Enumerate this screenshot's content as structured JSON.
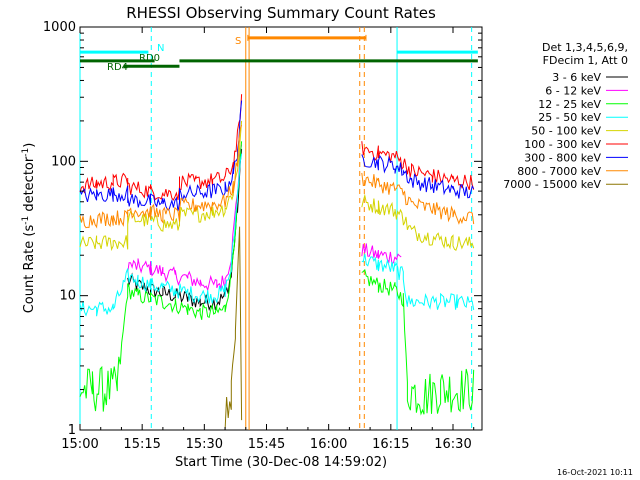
{
  "chart_data": {
    "type": "line",
    "title": "RHESSI Observing Summary Count Rates",
    "xlabel": "Start Time (30-Dec-08 14:59:02)",
    "ylabel_main": "Count Rate (s",
    "ylabel_sup1": "-1",
    "ylabel_mid": " detector",
    "ylabel_sup2": "-1",
    "ylabel_end": ")",
    "y_scale": "log",
    "ylim": [
      1,
      1000
    ],
    "xlim_minutes": [
      0,
      97
    ],
    "x_ticks": [
      {
        "minute": 0,
        "label": "15:00"
      },
      {
        "minute": 15,
        "label": "15:15"
      },
      {
        "minute": 30,
        "label": "15:30"
      },
      {
        "minute": 45,
        "label": "15:45"
      },
      {
        "minute": 60,
        "label": "16:00"
      },
      {
        "minute": 75,
        "label": "16:15"
      },
      {
        "minute": 90,
        "label": "16:30"
      }
    ],
    "y_ticks": [
      {
        "value": 1,
        "label": "1"
      },
      {
        "value": 10,
        "label": "10"
      },
      {
        "value": 100,
        "label": "100"
      },
      {
        "value": 1000,
        "label": "1000"
      }
    ],
    "legend_header": [
      "Det 1,3,4,5,6,9,",
      "FDecim 1, Att 0"
    ],
    "legend_placement": "right",
    "series": [
      {
        "name": "3 - 6 keV",
        "color": "#000000",
        "data": [
          [
            11.5,
            13
          ],
          [
            14,
            12
          ],
          [
            17,
            11
          ],
          [
            20,
            10.5
          ],
          [
            23,
            10
          ],
          [
            26,
            9.5
          ],
          [
            29,
            9
          ],
          [
            33,
            9
          ],
          [
            35,
            10
          ],
          [
            36.5,
            14
          ],
          [
            38,
            45
          ],
          [
            39,
            120
          ]
        ]
      },
      {
        "name": "6 - 12 keV",
        "color": "#ff00ff",
        "data": [
          [
            11.5,
            17
          ],
          [
            14,
            16.5
          ],
          [
            17,
            16
          ],
          [
            20,
            15
          ],
          [
            23,
            14
          ],
          [
            26,
            13.5
          ],
          [
            29,
            12.5
          ],
          [
            33,
            12
          ],
          [
            35,
            13
          ],
          [
            36.5,
            20
          ],
          [
            38,
            60
          ],
          [
            39,
            140
          ],
          [
            68,
            22
          ],
          [
            72,
            20
          ],
          [
            76,
            19.5
          ],
          [
            77.5,
            19
          ],
          [
            77.5,
            null
          ],
          [
            79,
            null
          ]
        ]
      },
      {
        "name": "12 - 25 keV",
        "color": "#00ff00",
        "data": [
          [
            0,
            2
          ],
          [
            3,
            2
          ],
          [
            6,
            2
          ],
          [
            9,
            2
          ],
          [
            11.5,
            11
          ],
          [
            14,
            10
          ],
          [
            17,
            9.5
          ],
          [
            20,
            9
          ],
          [
            23,
            8.5
          ],
          [
            26,
            8
          ],
          [
            29,
            7.5
          ],
          [
            33,
            7.5
          ],
          [
            35,
            8
          ],
          [
            36.5,
            15
          ],
          [
            38,
            50
          ],
          [
            39,
            130
          ],
          [
            68,
            14
          ],
          [
            72,
            12
          ],
          [
            76,
            11
          ],
          [
            78,
            9.5
          ],
          [
            79,
            2
          ],
          [
            83,
            1.8
          ],
          [
            87,
            2
          ],
          [
            91,
            2
          ],
          [
            95,
            2
          ]
        ]
      },
      {
        "name": "25 - 50 keV",
        "color": "#00ffff",
        "data": [
          [
            0,
            8
          ],
          [
            4,
            8
          ],
          [
            8,
            8
          ],
          [
            11.5,
            14
          ],
          [
            14,
            13
          ],
          [
            17,
            12
          ],
          [
            20,
            11.5
          ],
          [
            23,
            11
          ],
          [
            26,
            10.5
          ],
          [
            29,
            10
          ],
          [
            33,
            10
          ],
          [
            35,
            11
          ],
          [
            36.5,
            16
          ],
          [
            38,
            55
          ],
          [
            39,
            130
          ],
          [
            68,
            19
          ],
          [
            72,
            17
          ],
          [
            76,
            16
          ],
          [
            78,
            14
          ],
          [
            79,
            9
          ],
          [
            83,
            9
          ],
          [
            87,
            9
          ],
          [
            91,
            9
          ],
          [
            95,
            8.5
          ]
        ]
      },
      {
        "name": "50 - 100 keV",
        "color": "#d4d400",
        "data": [
          [
            0,
            24
          ],
          [
            4,
            24.5
          ],
          [
            8,
            25
          ],
          [
            11.5,
            25
          ],
          [
            11.5,
            38
          ],
          [
            17,
            36
          ],
          [
            20,
            34
          ],
          [
            24,
            33
          ],
          [
            24,
            40
          ],
          [
            28,
            40
          ],
          [
            32,
            42
          ],
          [
            35,
            45
          ],
          [
            37,
            60
          ],
          [
            38,
            90
          ],
          [
            39,
            180
          ],
          [
            68,
            50
          ],
          [
            72,
            46
          ],
          [
            76,
            43
          ],
          [
            78,
            38
          ],
          [
            80,
            30
          ],
          [
            85,
            27
          ],
          [
            90,
            25
          ],
          [
            95,
            24
          ]
        ]
      },
      {
        "name": "100 - 300 keV",
        "color": "#ff0000",
        "data": [
          [
            0,
            65
          ],
          [
            4,
            68
          ],
          [
            8,
            70
          ],
          [
            11.5,
            72
          ],
          [
            11.5,
            65
          ],
          [
            17,
            60
          ],
          [
            20,
            58
          ],
          [
            24,
            58
          ],
          [
            24,
            70
          ],
          [
            28,
            70
          ],
          [
            32,
            72
          ],
          [
            35,
            75
          ],
          [
            37,
            95
          ],
          [
            38,
            150
          ],
          [
            39,
            290
          ],
          [
            68,
            125
          ],
          [
            72,
            115
          ],
          [
            76,
            108
          ],
          [
            78,
            98
          ],
          [
            80,
            85
          ],
          [
            85,
            78
          ],
          [
            90,
            72
          ],
          [
            95,
            70
          ]
        ]
      },
      {
        "name": "300 - 800 keV",
        "color": "#0000ff",
        "data": [
          [
            0,
            55
          ],
          [
            4,
            56
          ],
          [
            8,
            57
          ],
          [
            11.5,
            58
          ],
          [
            11.5,
            52
          ],
          [
            17,
            50
          ],
          [
            20,
            48
          ],
          [
            24,
            48
          ],
          [
            24,
            57
          ],
          [
            28,
            58
          ],
          [
            32,
            60
          ],
          [
            35,
            62
          ],
          [
            37,
            80
          ],
          [
            38,
            120
          ],
          [
            39,
            250
          ],
          [
            68,
            105
          ],
          [
            72,
            98
          ],
          [
            76,
            92
          ],
          [
            78,
            85
          ],
          [
            80,
            72
          ],
          [
            85,
            66
          ],
          [
            90,
            61
          ],
          [
            95,
            58
          ]
        ]
      },
      {
        "name": "800 - 7000 keV",
        "color": "#ff8800",
        "data": [
          [
            0,
            36
          ],
          [
            4,
            37
          ],
          [
            8,
            38
          ],
          [
            11.5,
            38
          ],
          [
            11.5,
            44
          ],
          [
            17,
            42
          ],
          [
            20,
            40
          ],
          [
            24,
            40
          ],
          [
            24,
            46
          ],
          [
            28,
            47
          ],
          [
            32,
            48
          ],
          [
            35,
            50
          ],
          [
            37,
            65
          ],
          [
            38,
            100
          ],
          [
            39,
            210
          ],
          [
            68,
            75
          ],
          [
            72,
            68
          ],
          [
            76,
            62
          ],
          [
            78,
            58
          ],
          [
            80,
            48
          ],
          [
            85,
            44
          ],
          [
            90,
            40
          ],
          [
            95,
            38
          ]
        ]
      },
      {
        "name": "7000 - 15000 keV",
        "color": "#8b7500",
        "data": [
          [
            35,
            1
          ],
          [
            36.5,
            2
          ],
          [
            37.5,
            5
          ],
          [
            38.5,
            30
          ],
          [
            39,
            1
          ]
        ]
      }
    ],
    "annotations": [
      {
        "label": "N",
        "color": "#00ffff"
      },
      {
        "label": "RD0",
        "color": "#006400"
      },
      {
        "label": "RD4",
        "color": "#006400"
      },
      {
        "label": "S",
        "color": "#ff8800"
      }
    ],
    "flag_bars": [
      {
        "color": "#00ffff",
        "y_value": 650,
        "ranges": [
          [
            0,
            16.5
          ],
          [
            76.5,
            96
          ]
        ]
      },
      {
        "color": "#006400",
        "y_value": 560,
        "ranges": [
          [
            0,
            18
          ],
          [
            24,
            96
          ]
        ]
      },
      {
        "color": "#006400",
        "y_value": 510,
        "ranges": [
          [
            10.5,
            24
          ]
        ]
      },
      {
        "color": "#ff8800",
        "y_value": 830,
        "ranges": [
          [
            40.5,
            69
          ]
        ]
      }
    ],
    "vertical_lines": [
      {
        "minute": 0,
        "color": "#00ffff",
        "style": "solid"
      },
      {
        "minute": 17.2,
        "color": "#00ffff",
        "style": "dashed"
      },
      {
        "minute": 40,
        "color": "#ff8800",
        "style": "solid"
      },
      {
        "minute": 40.8,
        "color": "#ff8800",
        "style": "solid"
      },
      {
        "minute": 67.5,
        "color": "#ff8800",
        "style": "dashed"
      },
      {
        "minute": 68.6,
        "color": "#ff8800",
        "style": "dashed"
      },
      {
        "minute": 76.5,
        "color": "#00ffff",
        "style": "solid"
      },
      {
        "minute": 94.5,
        "color": "#00ffff",
        "style": "dashed"
      }
    ]
  },
  "footer": {
    "timestamp": "16-Oct-2021 10:11"
  }
}
